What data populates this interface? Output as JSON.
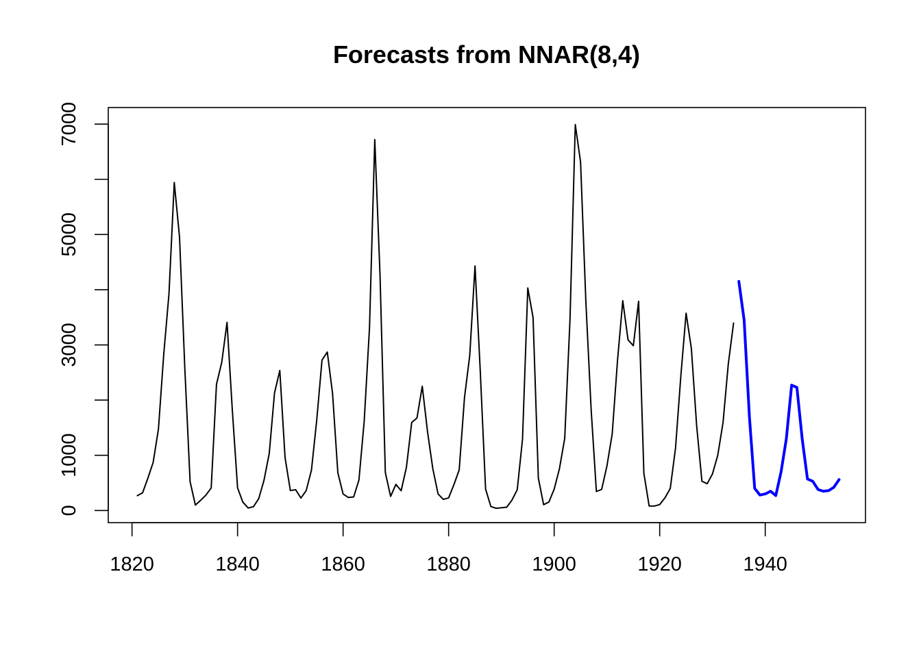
{
  "chart_data": {
    "type": "line",
    "title": "Forecasts from NNAR(8,4)",
    "xlabel": "",
    "ylabel": "",
    "xlim": [
      1815.5,
      1959
    ],
    "ylim": [
      -220,
      7300
    ],
    "x_ticks": [
      1820,
      1840,
      1860,
      1880,
      1900,
      1920,
      1940
    ],
    "x_tick_labels": [
      "1820",
      "1840",
      "1860",
      "1880",
      "1900",
      "1920",
      "1940"
    ],
    "y_ticks": [
      0,
      1000,
      2000,
      3000,
      4000,
      5000,
      6000,
      7000
    ],
    "y_tick_labels": [
      "0",
      "1000",
      "",
      "3000",
      "",
      "5000",
      "",
      "7000"
    ],
    "grid": false,
    "legend": "none",
    "series": [
      {
        "role": "observed",
        "color": "#000000",
        "x_start": 1821,
        "values": [
          269,
          321,
          585,
          871,
          1475,
          2821,
          3928,
          5943,
          4950,
          2577,
          523,
          98,
          184,
          279,
          409,
          2285,
          2685,
          3409,
          1824,
          409,
          151,
          45,
          68,
          213,
          546,
          1033,
          2129,
          2536,
          957,
          361,
          377,
          225,
          360,
          731,
          1638,
          2725,
          2871,
          2119,
          684,
          299,
          236,
          245,
          552,
          1623,
          3311,
          6721,
          4254,
          687,
          255,
          473,
          358,
          784,
          1594,
          1676,
          2251,
          1426,
          756,
          299,
          201,
          229,
          469,
          736,
          2042,
          2811,
          4431,
          2511,
          389,
          73,
          39,
          49,
          59,
          188,
          377,
          1292,
          4031,
          3495,
          587,
          105,
          153,
          387,
          758,
          1307,
          3465,
          6991,
          6313,
          3794,
          1836,
          345,
          382,
          808,
          1388,
          2713,
          3800,
          3091,
          2985,
          3790,
          674,
          81,
          80,
          108,
          229,
          399,
          1132,
          2432,
          3574,
          2935,
          1537,
          529,
          485,
          662,
          1000,
          1590,
          2657,
          3396
        ]
      },
      {
        "role": "forecast",
        "color": "#0000ff",
        "x_start": 1935,
        "values": [
          4150,
          3450,
          1700,
          400,
          280,
          300,
          350,
          270,
          700,
          1300,
          2270,
          2230,
          1300,
          570,
          530,
          380,
          350,
          360,
          420,
          560
        ]
      }
    ]
  }
}
